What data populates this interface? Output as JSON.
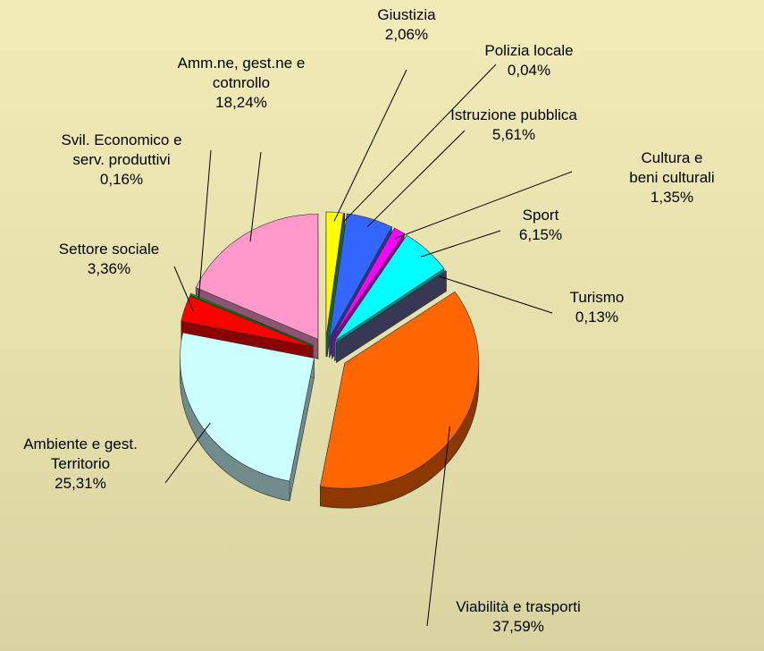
{
  "chart_data": {
    "type": "pie",
    "categories": [
      "Giustizia",
      "Polizia locale",
      "Istruzione pubblica",
      "Cultura e beni culturali",
      "Sport",
      "Turismo",
      "Viabilità e trasporti",
      "Ambiente e gest.\nTerritorio",
      "Settore sociale",
      "Svil. Economico e\nserv. produttivi",
      "Amm.ne, gest.ne e\ncotnrollo"
    ],
    "values": [
      2.06,
      0.04,
      5.61,
      1.35,
      6.15,
      0.13,
      37.59,
      25.31,
      3.36,
      0.16,
      18.24
    ],
    "value_labels": [
      "2,06%",
      "0,04%",
      "5,61%",
      "1,35%",
      "6,15%",
      "0,13%",
      "37,59%",
      "25,31%",
      "3,36%",
      "0,16%",
      "18,24%"
    ],
    "colors": [
      "#ffff00",
      "#00cc66",
      "#3366ff",
      "#ff00ff",
      "#00ffff",
      "#666699",
      "#ff6600",
      "#ccffff",
      "#ff0000",
      "#00cc00",
      "#ff99cc"
    ]
  }
}
